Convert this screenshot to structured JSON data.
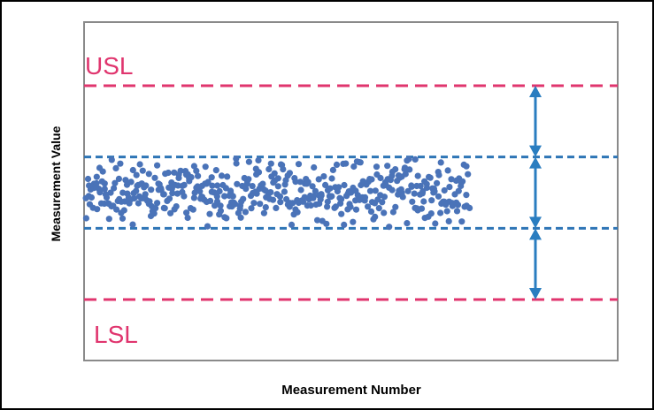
{
  "chart_data": {
    "type": "scatter",
    "title": "",
    "xlabel": "Measurement Number",
    "ylabel": "Measurement Value",
    "xlim": [
      0,
      750
    ],
    "ylim": [
      0,
      100
    ],
    "grid": false,
    "legend": "none",
    "limits": [
      {
        "label": "USL",
        "value": 100,
        "color": "#e0356e",
        "style": "dashed"
      },
      {
        "label": "LSL",
        "value": 0,
        "color": "#e0356e",
        "style": "dashed"
      }
    ],
    "control_lines": [
      {
        "value": 66.7,
        "color": "#2e75b6",
        "style": "dashed"
      },
      {
        "value": 33.3,
        "color": "#2e75b6",
        "style": "dashed"
      }
    ],
    "series": [
      {
        "color": "#4a73b8",
        "x_range": [
          0,
          450
        ],
        "count": 450,
        "mean": 50,
        "spread": 7.5
      }
    ],
    "arrows": {
      "color": "#2a7dc0",
      "spans": [
        [
          100,
          66.7
        ],
        [
          66.7,
          33.3
        ],
        [
          33.3,
          0
        ]
      ]
    }
  },
  "labels": {
    "usl": "USL",
    "lsl": "LSL",
    "x_axis": "Measurement Number",
    "y_axis": "Measurement Value"
  }
}
